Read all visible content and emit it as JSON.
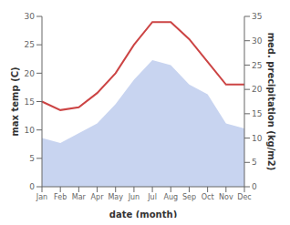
{
  "chart_data": {
    "type": "line",
    "categories": [
      "Jan",
      "Feb",
      "Mar",
      "Apr",
      "May",
      "Jun",
      "Jul",
      "Aug",
      "Sep",
      "Oct",
      "Nov",
      "Dec"
    ],
    "series": [
      {
        "type": "area",
        "axis": "y2",
        "color": "#c8d4f0",
        "values": [
          10.0,
          9.0,
          11.0,
          13.0,
          17.0,
          22.0,
          26.0,
          25.0,
          21.0,
          19.0,
          13.0,
          12.0
        ]
      },
      {
        "type": "line",
        "color": "#cc4444",
        "values": [
          15.0,
          13.5,
          14.0,
          16.5,
          20.0,
          25.0,
          29.0,
          29.0,
          26.0,
          22.0,
          18.0,
          18.0
        ]
      }
    ],
    "xlabel": "date (month)",
    "ylabel": "max temp (C)",
    "y2label": "med. precipitation (kg/m2)",
    "ylim": [
      0,
      30
    ],
    "yticks": [
      0,
      5,
      10,
      15,
      20,
      25,
      30
    ],
    "y2lim": [
      0,
      35
    ],
    "y2ticks": [
      0,
      5,
      10,
      15,
      20,
      25,
      30,
      35
    ],
    "grid": false
  }
}
